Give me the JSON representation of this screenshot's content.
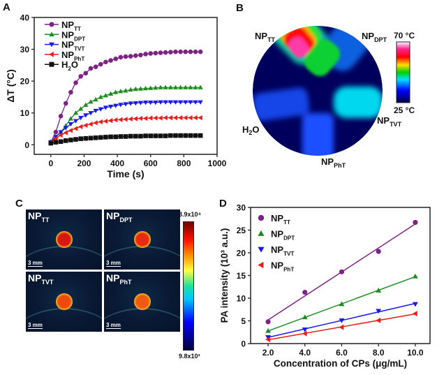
{
  "panels": {
    "a": "A",
    "b": "B",
    "c": "C",
    "d": "D"
  },
  "colors": {
    "NP_TT": "#7d2386",
    "NP_DPT": "#1f8c1f",
    "NP_TVT": "#1a1ae6",
    "NP_PhT": "#ea1c1c",
    "H2O": "#111111"
  },
  "chart_data": [
    {
      "type": "line",
      "panel": "A",
      "xlabel": "Time (s)",
      "ylabel": "ΔT (°C)",
      "xlim": [
        -100,
        1000
      ],
      "ylim": [
        -3,
        40
      ],
      "xticks": [
        0,
        200,
        400,
        600,
        800,
        1000
      ],
      "yticks": [
        0,
        10,
        20,
        30,
        40
      ],
      "legend": "top-left",
      "x": [
        0,
        30,
        60,
        90,
        120,
        150,
        180,
        210,
        240,
        270,
        300,
        330,
        360,
        390,
        420,
        450,
        480,
        510,
        540,
        570,
        600,
        630,
        660,
        690,
        720,
        750,
        780,
        810,
        840,
        870,
        900
      ],
      "series": [
        {
          "name": "NP",
          "sub": "TT",
          "key": "NP_TT",
          "marker": "circle",
          "values": [
            0.8,
            4,
            9,
            13,
            16.5,
            19.5,
            21.5,
            22.5,
            24,
            24.5,
            25.3,
            26,
            26.5,
            27,
            27.5,
            27.7,
            27.8,
            28,
            28.2,
            28.5,
            28.7,
            28.8,
            28.9,
            29,
            29.1,
            29.2,
            29.2,
            29.2,
            29.2,
            29.2,
            29.2
          ]
        },
        {
          "name": "NP",
          "sub": "DPT",
          "key": "NP_DPT",
          "marker": "triangle-up",
          "values": [
            1,
            2.5,
            4,
            6,
            8.2,
            10,
            11.3,
            12.5,
            13.5,
            14.2,
            15,
            15.5,
            16,
            16.5,
            16.8,
            17,
            17.3,
            17.5,
            17.6,
            17.7,
            17.8,
            17.9,
            18,
            18,
            18,
            18,
            18,
            18,
            18,
            18,
            18
          ]
        },
        {
          "name": "NP",
          "sub": "TVT",
          "key": "NP_TVT",
          "marker": "triangle-down",
          "values": [
            0.8,
            2.5,
            4,
            5.3,
            6.5,
            7.5,
            8.5,
            9.3,
            10,
            10.7,
            11.2,
            11.7,
            12,
            12.3,
            12.6,
            12.8,
            13,
            13.1,
            13.2,
            13.3,
            13.3,
            13.3,
            13.4,
            13.4,
            13.4,
            13.4,
            13.4,
            13.4,
            13.4,
            13.4,
            13.4
          ]
        },
        {
          "name": "NP",
          "sub": "PhT",
          "key": "NP_PhT",
          "marker": "triangle-left",
          "values": [
            0.7,
            2,
            3,
            3.8,
            4.5,
            5.1,
            5.7,
            6.1,
            6.5,
            6.9,
            7.2,
            7.4,
            7.6,
            7.8,
            7.9,
            8,
            8.1,
            8.2,
            8.3,
            8.3,
            8.4,
            8.4,
            8.4,
            8.5,
            8.5,
            8.5,
            8.5,
            8.5,
            8.5,
            8.5,
            8.5
          ]
        },
        {
          "name": "H",
          "sub": "2",
          "suffix": "O",
          "key": "H2O",
          "marker": "square",
          "values": [
            0.5,
            0.8,
            1,
            1.3,
            1.5,
            1.7,
            1.9,
            2,
            2.1,
            2.2,
            2.3,
            2.4,
            2.5,
            2.5,
            2.6,
            2.6,
            2.7,
            2.7,
            2.7,
            2.8,
            2.8,
            2.8,
            2.8,
            2.8,
            2.9,
            2.9,
            2.9,
            2.9,
            2.9,
            2.9,
            2.9
          ]
        }
      ]
    },
    {
      "type": "scatter",
      "panel": "D",
      "xlabel": "Concentration of CPs (μg/mL)",
      "ylabel": "PA intensity (10³ a.u.)",
      "xlim": [
        1.05,
        10.8
      ],
      "ylim": [
        0,
        30
      ],
      "xticks": [
        "2.0",
        "4.0",
        "6.0",
        "8.0",
        "10.0"
      ],
      "yticks": [
        0,
        5,
        10,
        15,
        20,
        25,
        30
      ],
      "legend": "top-left",
      "fit": "linear",
      "x": [
        2,
        4,
        6,
        8,
        10
      ],
      "series": [
        {
          "name": "NP",
          "sub": "TT",
          "key": "NP_TT",
          "marker": "circle",
          "values": [
            4.8,
            11.3,
            15.8,
            20.3,
            26.7
          ]
        },
        {
          "name": "NP",
          "sub": "DPT",
          "key": "NP_DPT",
          "marker": "triangle-up",
          "values": [
            2.8,
            5.8,
            8.7,
            11.7,
            14.8
          ]
        },
        {
          "name": "NP",
          "sub": "TVT",
          "key": "NP_TVT",
          "marker": "triangle-down",
          "values": [
            1.4,
            3.1,
            5.1,
            7.2,
            8.7
          ]
        },
        {
          "name": "NP",
          "sub": "PhT",
          "key": "NP_PhT",
          "marker": "triangle-left",
          "values": [
            0.9,
            2.2,
            3.6,
            5.1,
            6.6
          ]
        }
      ]
    }
  ],
  "thermal_image": {
    "labels": {
      "tt": {
        "base": "NP",
        "sub": "TT"
      },
      "dpt": {
        "base": "NP",
        "sub": "DPT"
      },
      "tvt": {
        "base": "NP",
        "sub": "TVT"
      },
      "pht": {
        "base": "NP",
        "sub": "PhT"
      },
      "h2o": {
        "base": "H",
        "sub": "2",
        "suffix": "O"
      }
    },
    "colorbar_max": "70 °C",
    "colorbar_min": "25 °C"
  },
  "pa_images": {
    "tiles": [
      {
        "base": "NP",
        "sub": "TT",
        "scale": "3 mm"
      },
      {
        "base": "NP",
        "sub": "DPT",
        "scale": "3 mm"
      },
      {
        "base": "NP",
        "sub": "TVT",
        "scale": "3 mm"
      },
      {
        "base": "NP",
        "sub": "PhT",
        "scale": "3 mm"
      }
    ],
    "colorbar_max": "3.9x10⁴",
    "colorbar_min": "9.8x10³"
  }
}
